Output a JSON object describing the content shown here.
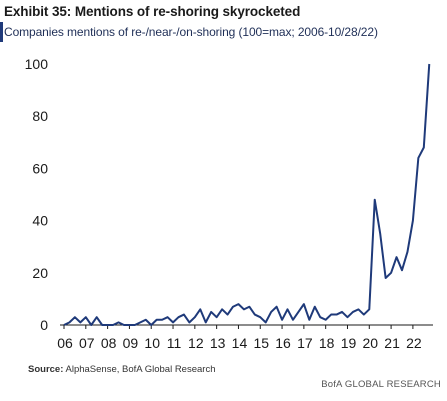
{
  "header": {
    "title": "Exhibit 35: Mentions of re-shoring skyrocketed",
    "subtitle": "Companies mentions of re-/near-/on-shoring (100=max; 2006-10/28/22)"
  },
  "footer": {
    "source_label": "Source:",
    "source_text": "AlphaSense, BofA Global Research",
    "brand": "BofA GLOBAL RESEARCH"
  },
  "colors": {
    "line": "#1f3a7a",
    "axis": "#1a1a1a",
    "accent": "#1f3a7a"
  },
  "chart_data": {
    "type": "line",
    "title": "Exhibit 35: Mentions of re-shoring skyrocketed",
    "subtitle": "Companies mentions of re-/near-/on-shoring (100=max; 2006-10/28/22)",
    "xlabel": "",
    "ylabel": "",
    "xlim": [
      2006,
      2022.83
    ],
    "ylim": [
      0,
      100
    ],
    "x_tick_values": [
      2006,
      2007,
      2008,
      2009,
      2010,
      2011,
      2012,
      2013,
      2014,
      2015,
      2016,
      2017,
      2018,
      2019,
      2020,
      2021,
      2022
    ],
    "x_tick_labels": [
      "06",
      "07",
      "08",
      "09",
      "10",
      "11",
      "12",
      "13",
      "14",
      "15",
      "16",
      "17",
      "18",
      "19",
      "20",
      "21",
      "22"
    ],
    "y_ticks": [
      0,
      20,
      40,
      60,
      80,
      100
    ],
    "grid": false,
    "legend": "none",
    "series": [
      {
        "x": [
          2006.0,
          2006.25,
          2006.5,
          2006.75,
          2007.0,
          2007.25,
          2007.5,
          2007.75,
          2008.0,
          2008.25,
          2008.5,
          2008.75,
          2009.0,
          2009.25,
          2009.5,
          2009.75,
          2010.0,
          2010.25,
          2010.5,
          2010.75,
          2011.0,
          2011.25,
          2011.5,
          2011.75,
          2012.0,
          2012.25,
          2012.5,
          2012.75,
          2013.0,
          2013.25,
          2013.5,
          2013.75,
          2014.0,
          2014.25,
          2014.5,
          2014.75,
          2015.0,
          2015.25,
          2015.5,
          2015.75,
          2016.0,
          2016.25,
          2016.5,
          2016.75,
          2017.0,
          2017.25,
          2017.5,
          2017.75,
          2018.0,
          2018.25,
          2018.5,
          2018.75,
          2019.0,
          2019.25,
          2019.5,
          2019.75,
          2020.0,
          2020.25,
          2020.5,
          2020.75,
          2021.0,
          2021.25,
          2021.5,
          2021.75,
          2022.0,
          2022.25,
          2022.5,
          2022.75
        ],
        "values": [
          0,
          1,
          3,
          1,
          3,
          0,
          3,
          0,
          0,
          0,
          1,
          0,
          0,
          0,
          1,
          2,
          0,
          2,
          2,
          3,
          1,
          3,
          4,
          1,
          3,
          6,
          1,
          5,
          3,
          6,
          4,
          7,
          8,
          6,
          7,
          4,
          3,
          1,
          5,
          7,
          2,
          6,
          2,
          5,
          8,
          2,
          7,
          3,
          2,
          4,
          4,
          5,
          3,
          5,
          6,
          4,
          6,
          48,
          35,
          18,
          20,
          26,
          21,
          28,
          40,
          64,
          68,
          100
        ]
      }
    ]
  }
}
